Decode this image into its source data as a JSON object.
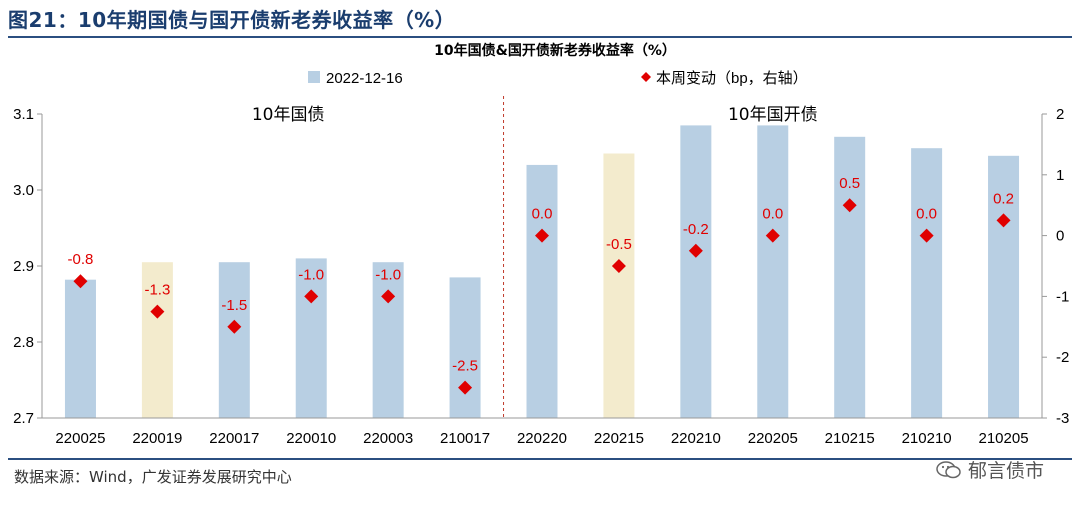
{
  "figure": {
    "title": "图21：10年期国债与国开债新老券收益率（%）",
    "source": "数据来源：Wind，广发证券发展研究中心",
    "watermark": "郁言债市"
  },
  "chart_data": {
    "type": "bar",
    "title": "10年国债&国开债新老券收益率（%）",
    "categories": [
      "220025",
      "220019",
      "220017",
      "220010",
      "220003",
      "210017",
      "220220",
      "220215",
      "220210",
      "220205",
      "210215",
      "210210",
      "210205"
    ],
    "series": [
      {
        "name": "2022-12-16",
        "type": "bar",
        "axis": "left",
        "color": "#b8cfe3",
        "highlight_color": "#f3ebcd",
        "highlight_indices": [
          1,
          7
        ],
        "values": [
          2.882,
          2.905,
          2.905,
          2.91,
          2.905,
          2.885,
          3.033,
          3.048,
          3.085,
          3.085,
          3.07,
          3.055,
          3.045
        ]
      },
      {
        "name": "本周变动（bp，右轴）",
        "type": "scatter",
        "axis": "right",
        "color": "#e00000",
        "marker": "diamond",
        "values": [
          -0.75,
          -1.25,
          -1.5,
          -1.0,
          -1.0,
          -2.5,
          0.0,
          -0.5,
          -0.25,
          0.0,
          0.5,
          0.0,
          0.25
        ],
        "labels": [
          "-0.8",
          "-1.3",
          "-1.5",
          "-1.0",
          "-1.0",
          "-2.5",
          "0.0",
          "-0.5",
          "-0.2",
          "0.0",
          "0.5",
          "0.0",
          "0.2"
        ]
      }
    ],
    "y_left": {
      "min": 2.7,
      "max": 3.1,
      "ticks": [
        "2.7",
        "2.8",
        "2.9",
        "3.0",
        "3.1"
      ]
    },
    "y_right": {
      "min": -3,
      "max": 2,
      "ticks": [
        "-3",
        "-2",
        "-1",
        "0",
        "1",
        "2"
      ]
    },
    "groups": [
      {
        "label": "10年国债",
        "from": 0,
        "to": 5
      },
      {
        "label": "10年国开债",
        "from": 6,
        "to": 12
      }
    ],
    "divider_after_index": 5,
    "divider_color": "#c0392b",
    "legend_position": "top",
    "grid": false
  }
}
